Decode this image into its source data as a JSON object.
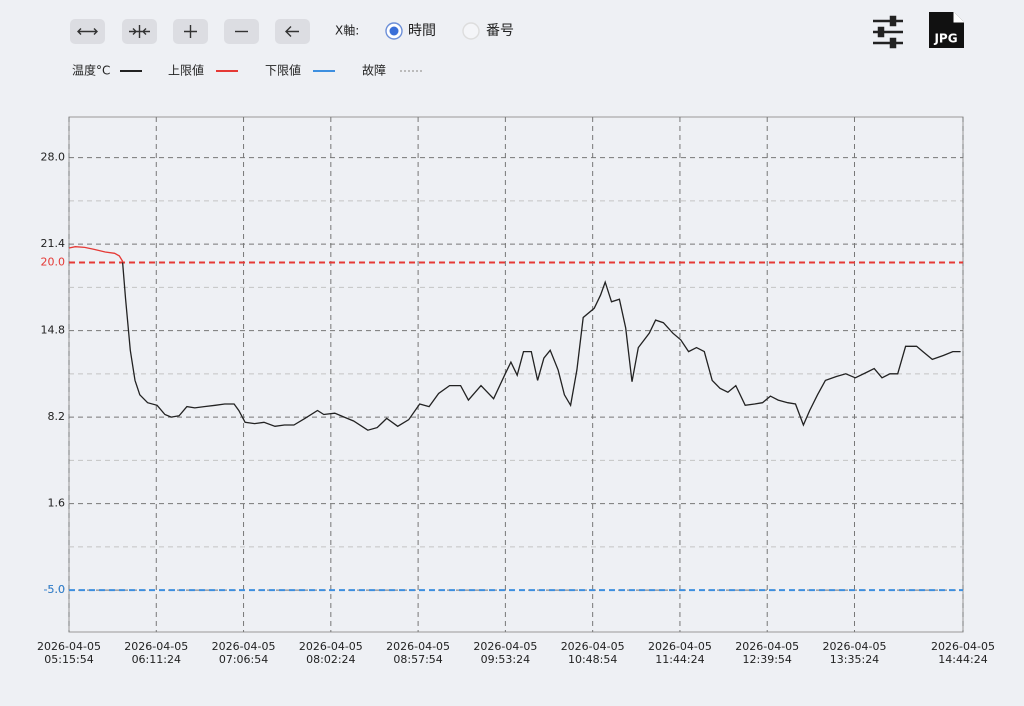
{
  "toolbar": {
    "x_axis_label": "X軸:",
    "radio": [
      "時間",
      "番号"
    ],
    "selected": 0,
    "export_label": "JPG"
  },
  "chart_data": {
    "type": "line",
    "xlim": [
      "2026-04-05 05:15:54",
      "2026-04-05 14:44:24"
    ],
    "xticks": [
      "2026-04-05 05:15:54",
      "2026-04-05 06:11:24",
      "2026-04-05 07:06:54",
      "2026-04-05 08:02:24",
      "2026-04-05 08:57:54",
      "2026-04-05 09:53:24",
      "2026-04-05 10:48:54",
      "2026-04-05 11:44:24",
      "2026-04-05 12:39:54",
      "2026-04-05 13:35:24",
      "2026-04-05 14:44:24"
    ],
    "ylim": [
      -8.2,
      31.1
    ],
    "yticks": [
      {
        "value": 28,
        "label": "28.0"
      },
      21.4,
      14.8,
      8.2,
      1.6,
      {
        "value": -5,
        "label": "-5.0"
      }
    ],
    "yminor": [
      24.7,
      18.1,
      11.5,
      4.9,
      -1.7
    ],
    "grid": true,
    "limits": [
      {
        "name": "上限値",
        "color": "#e53935",
        "value": 20,
        "label": "20.0"
      },
      {
        "name": "下限値",
        "color": "#3d8fe0",
        "value": -5,
        "label": "-5.0"
      }
    ],
    "fault": {
      "name": "故障",
      "color": "#bbbbbb"
    },
    "x": [
      "2026-04-05 05:15:54",
      "2026-04-05 05:19:54",
      "2026-04-05 05:25:54",
      "2026-04-05 05:31:54",
      "2026-04-05 05:38:54",
      "2026-04-05 05:44:54",
      "2026-04-05 05:47:54",
      "2026-04-05 05:49:54",
      "2026-04-05 05:51:54",
      "2026-04-05 05:54:54",
      "2026-04-05 05:57:54",
      "2026-04-05 06:00:54",
      "2026-04-05 06:05:54",
      "2026-04-05 06:11:54",
      "2026-04-05 06:16:54",
      "2026-04-05 06:20:54",
      "2026-04-05 06:25:54",
      "2026-04-05 06:30:54",
      "2026-04-05 06:35:54",
      "2026-04-05 06:41:54",
      "2026-04-05 06:48:54",
      "2026-04-05 06:54:54",
      "2026-04-05 07:00:54",
      "2026-04-05 07:03:54",
      "2026-04-05 07:07:54",
      "2026-04-05 07:13:54",
      "2026-04-05 07:19:54",
      "2026-04-05 07:26:54",
      "2026-04-05 07:32:54",
      "2026-04-05 07:38:54",
      "2026-04-05 07:45:54",
      "2026-04-05 07:53:54",
      "2026-04-05 07:57:54",
      "2026-04-05 08:04:54",
      "2026-04-05 08:10:54",
      "2026-04-05 08:16:54",
      "2026-04-05 08:25:54",
      "2026-04-05 08:31:54",
      "2026-04-05 08:37:54",
      "2026-04-05 08:44:54",
      "2026-04-05 08:51:54",
      "2026-04-05 08:58:54",
      "2026-04-05 09:04:54",
      "2026-04-05 09:10:54",
      "2026-04-05 09:17:54",
      "2026-04-05 09:24:54",
      "2026-04-05 09:29:54",
      "2026-04-05 09:37:54",
      "2026-04-05 09:45:54",
      "2026-04-05 09:52:54",
      "2026-04-05 09:56:54",
      "2026-04-05 10:00:54",
      "2026-04-05 10:04:54",
      "2026-04-05 10:09:54",
      "2026-04-05 10:13:54",
      "2026-04-05 10:17:54",
      "2026-04-05 10:21:54",
      "2026-04-05 10:26:54",
      "2026-04-05 10:30:54",
      "2026-04-05 10:34:54",
      "2026-04-05 10:38:54",
      "2026-04-05 10:42:54",
      "2026-04-05 10:49:54",
      "2026-04-05 10:53:54",
      "2026-04-05 10:56:54",
      "2026-04-05 11:00:54",
      "2026-04-05 11:05:54",
      "2026-04-05 11:09:54",
      "2026-04-05 11:13:54",
      "2026-04-05 11:17:54",
      "2026-04-05 11:24:54",
      "2026-04-05 11:28:54",
      "2026-04-05 11:33:54",
      "2026-04-05 11:39:54",
      "2026-04-05 11:44:54",
      "2026-04-05 11:49:54",
      "2026-04-05 11:54:54",
      "2026-04-05 11:59:54",
      "2026-04-05 12:04:54",
      "2026-04-05 12:09:54",
      "2026-04-05 12:14:54",
      "2026-04-05 12:19:54",
      "2026-04-05 12:25:54",
      "2026-04-05 12:31:54",
      "2026-04-05 12:36:54",
      "2026-04-05 12:41:54",
      "2026-04-05 12:46:54",
      "2026-04-05 12:52:54",
      "2026-04-05 12:57:54",
      "2026-04-05 13:02:54",
      "2026-04-05 13:06:54",
      "2026-04-05 13:11:54",
      "2026-04-05 13:16:54",
      "2026-04-05 13:23:54",
      "2026-04-05 13:29:54",
      "2026-04-05 13:35:54",
      "2026-04-05 13:42:54",
      "2026-04-05 13:47:54",
      "2026-04-05 13:52:54",
      "2026-04-05 13:57:54",
      "2026-04-05 14:02:54",
      "2026-04-05 14:07:54",
      "2026-04-05 14:14:54",
      "2026-04-05 14:18:54",
      "2026-04-05 14:24:54",
      "2026-04-05 14:31:54",
      "2026-04-05 14:37:54",
      "2026-04-05 14:42:54"
    ],
    "series": [
      {
        "name": "温度°C",
        "color": "#222222",
        "values": [
          21.1,
          21.2,
          21.15,
          21.0,
          20.8,
          20.7,
          20.5,
          20.1,
          17.2,
          13.3,
          11.0,
          9.9,
          9.3,
          9.1,
          8.4,
          8.2,
          8.3,
          9.0,
          8.9,
          9.0,
          9.1,
          9.2,
          9.2,
          8.7,
          7.8,
          7.7,
          7.8,
          7.5,
          7.6,
          7.6,
          8.1,
          8.7,
          8.4,
          8.5,
          8.2,
          7.9,
          7.2,
          7.4,
          8.1,
          7.5,
          8.0,
          9.2,
          9.0,
          10.0,
          10.6,
          10.6,
          9.5,
          10.6,
          9.6,
          11.4,
          12.4,
          11.4,
          13.2,
          13.2,
          11.0,
          12.7,
          13.3,
          11.8,
          9.9,
          9.1,
          11.8,
          15.8,
          16.5,
          17.5,
          18.5,
          17.0,
          17.2,
          15.0,
          10.9,
          13.5,
          14.6,
          15.6,
          15.4,
          14.6,
          14.1,
          13.2,
          13.5,
          13.2,
          11.0,
          10.4,
          10.1,
          10.6,
          9.1,
          9.2,
          9.3,
          9.8,
          9.5,
          9.3,
          9.2,
          7.6,
          8.7,
          9.9,
          11.0,
          11.3,
          11.5,
          11.2,
          11.6,
          11.9,
          11.2,
          11.5,
          11.5,
          13.6,
          13.6,
          13.2,
          12.6,
          12.9,
          13.2,
          13.2
        ]
      }
    ]
  }
}
